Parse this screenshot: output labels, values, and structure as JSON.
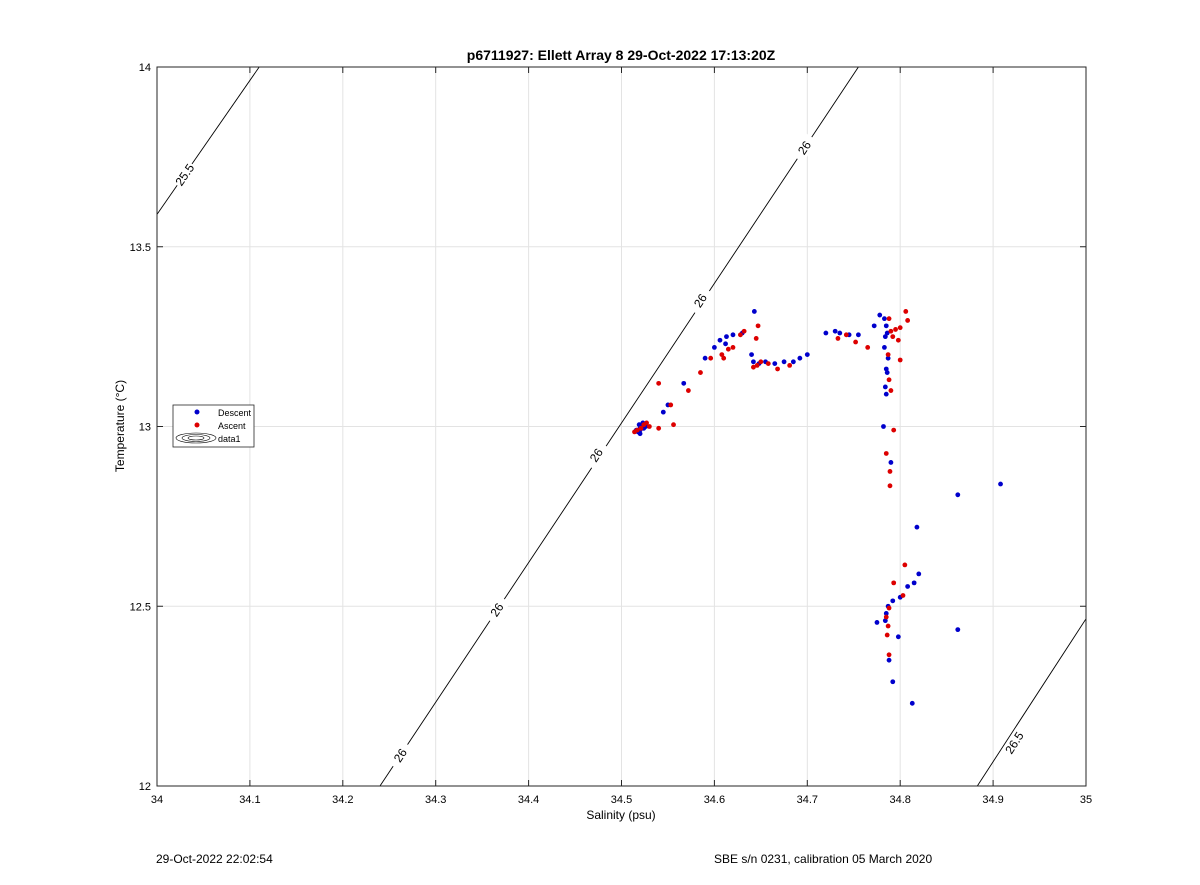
{
  "chart_data": {
    "type": "scatter",
    "title": "p6711927: Ellett Array 8 29-Oct-2022 17:13:20Z",
    "xlabel": "Salinity (psu)",
    "ylabel": "Temperature (°C)",
    "xlim": [
      34,
      35
    ],
    "ylim": [
      12,
      14
    ],
    "xticks": [
      34,
      34.1,
      34.2,
      34.3,
      34.4,
      34.5,
      34.6,
      34.7,
      34.8,
      34.9,
      35
    ],
    "xtick_labels": [
      "34",
      "34.1",
      "34.2",
      "34.3",
      "34.4",
      "34.5",
      "34.6",
      "34.7",
      "34.8",
      "34.9",
      "35"
    ],
    "yticks": [
      12,
      12.5,
      13,
      13.5,
      14
    ],
    "ytick_labels": [
      "12",
      "12.5",
      "13",
      "13.5",
      "14"
    ],
    "grid": true,
    "legend_position": "left",
    "legend": [
      {
        "label": "Descent",
        "color": "#0000CC",
        "marker": "dot"
      },
      {
        "label": "Ascent",
        "color": "#DD0000",
        "marker": "dot"
      },
      {
        "label": "data1",
        "marker": "contour"
      }
    ],
    "contours": [
      {
        "label": "25.5",
        "points": [
          [
            34.0,
            13.59
          ],
          [
            34.11,
            14.0
          ]
        ],
        "label_at": [
          34.03,
          13.7
        ]
      },
      {
        "label": "26",
        "points": [
          [
            34.24,
            12.0
          ],
          [
            34.755,
            14.0
          ]
        ],
        "label_positions": [
          [
            34.262,
            12.085
          ],
          [
            34.366,
            12.49
          ],
          [
            34.473,
            12.92
          ],
          [
            34.585,
            13.35
          ],
          [
            34.697,
            13.775
          ]
        ]
      },
      {
        "label": "26.5",
        "points": [
          [
            34.883,
            12.0
          ],
          [
            35.0,
            12.465
          ]
        ],
        "label_at": [
          34.923,
          12.12
        ]
      }
    ],
    "series": [
      {
        "name": "Descent",
        "color": "#0000CC",
        "points": [
          [
            34.516,
            12.99
          ],
          [
            34.518,
            12.985
          ],
          [
            34.52,
            12.995
          ],
          [
            34.522,
            13.0
          ],
          [
            34.524,
            12.995
          ],
          [
            34.526,
            13.0
          ],
          [
            34.52,
            12.98
          ],
          [
            34.519,
            13.005
          ],
          [
            34.523,
            13.01
          ],
          [
            34.525,
            13.0
          ],
          [
            34.52,
            12.99
          ],
          [
            34.545,
            13.04
          ],
          [
            34.55,
            13.06
          ],
          [
            34.567,
            13.12
          ],
          [
            34.59,
            13.19
          ],
          [
            34.6,
            13.22
          ],
          [
            34.606,
            13.24
          ],
          [
            34.612,
            13.23
          ],
          [
            34.613,
            13.25
          ],
          [
            34.62,
            13.255
          ],
          [
            34.63,
            13.26
          ],
          [
            34.643,
            13.32
          ],
          [
            34.64,
            13.2
          ],
          [
            34.642,
            13.18
          ],
          [
            34.648,
            13.175
          ],
          [
            34.655,
            13.18
          ],
          [
            34.665,
            13.175
          ],
          [
            34.675,
            13.18
          ],
          [
            34.685,
            13.18
          ],
          [
            34.692,
            13.19
          ],
          [
            34.7,
            13.2
          ],
          [
            34.72,
            13.26
          ],
          [
            34.73,
            13.265
          ],
          [
            34.735,
            13.26
          ],
          [
            34.745,
            13.255
          ],
          [
            34.755,
            13.255
          ],
          [
            34.772,
            13.28
          ],
          [
            34.778,
            13.31
          ],
          [
            34.783,
            13.3
          ],
          [
            34.785,
            13.28
          ],
          [
            34.786,
            13.26
          ],
          [
            34.784,
            13.25
          ],
          [
            34.783,
            13.22
          ],
          [
            34.787,
            13.19
          ],
          [
            34.785,
            13.16
          ],
          [
            34.786,
            13.15
          ],
          [
            34.784,
            13.11
          ],
          [
            34.785,
            13.09
          ],
          [
            34.782,
            13.0
          ],
          [
            34.79,
            12.9
          ],
          [
            34.862,
            12.81
          ],
          [
            34.908,
            12.84
          ],
          [
            34.818,
            12.72
          ],
          [
            34.82,
            12.59
          ],
          [
            34.815,
            12.565
          ],
          [
            34.808,
            12.555
          ],
          [
            34.8,
            12.525
          ],
          [
            34.792,
            12.515
          ],
          [
            34.787,
            12.5
          ],
          [
            34.785,
            12.48
          ],
          [
            34.775,
            12.455
          ],
          [
            34.784,
            12.46
          ],
          [
            34.862,
            12.435
          ],
          [
            34.798,
            12.415
          ],
          [
            34.788,
            12.35
          ],
          [
            34.792,
            12.29
          ],
          [
            34.813,
            12.23
          ]
        ]
      },
      {
        "name": "Ascent",
        "color": "#DD0000",
        "points": [
          [
            34.514,
            12.985
          ],
          [
            34.517,
            12.99
          ],
          [
            34.521,
            12.995
          ],
          [
            34.524,
            13.005
          ],
          [
            34.527,
            13.01
          ],
          [
            34.53,
            13.0
          ],
          [
            34.54,
            12.995
          ],
          [
            34.54,
            13.12
          ],
          [
            34.553,
            13.06
          ],
          [
            34.556,
            13.005
          ],
          [
            34.572,
            13.1
          ],
          [
            34.585,
            13.15
          ],
          [
            34.596,
            13.19
          ],
          [
            34.608,
            13.2
          ],
          [
            34.61,
            13.19
          ],
          [
            34.615,
            13.215
          ],
          [
            34.62,
            13.22
          ],
          [
            34.628,
            13.255
          ],
          [
            34.632,
            13.265
          ],
          [
            34.642,
            13.165
          ],
          [
            34.646,
            13.17
          ],
          [
            34.65,
            13.18
          ],
          [
            34.658,
            13.175
          ],
          [
            34.668,
            13.16
          ],
          [
            34.681,
            13.17
          ],
          [
            34.647,
            13.28
          ],
          [
            34.645,
            13.245
          ],
          [
            34.733,
            13.245
          ],
          [
            34.742,
            13.255
          ],
          [
            34.752,
            13.235
          ],
          [
            34.765,
            13.22
          ],
          [
            34.788,
            13.3
          ],
          [
            34.79,
            13.265
          ],
          [
            34.795,
            13.27
          ],
          [
            34.8,
            13.275
          ],
          [
            34.798,
            13.24
          ],
          [
            34.806,
            13.32
          ],
          [
            34.808,
            13.295
          ],
          [
            34.792,
            13.25
          ],
          [
            34.787,
            13.2
          ],
          [
            34.8,
            13.185
          ],
          [
            34.788,
            13.13
          ],
          [
            34.79,
            13.1
          ],
          [
            34.793,
            12.99
          ],
          [
            34.785,
            12.925
          ],
          [
            34.789,
            12.875
          ],
          [
            34.789,
            12.835
          ],
          [
            34.805,
            12.615
          ],
          [
            34.793,
            12.565
          ],
          [
            34.803,
            12.53
          ],
          [
            34.788,
            12.495
          ],
          [
            34.785,
            12.47
          ],
          [
            34.787,
            12.445
          ],
          [
            34.786,
            12.42
          ],
          [
            34.788,
            12.365
          ]
        ]
      }
    ]
  },
  "footer": {
    "timestamp": "29-Oct-2022 22:02:54",
    "calibration": "SBE s/n 0231, calibration 05 March 2020"
  }
}
